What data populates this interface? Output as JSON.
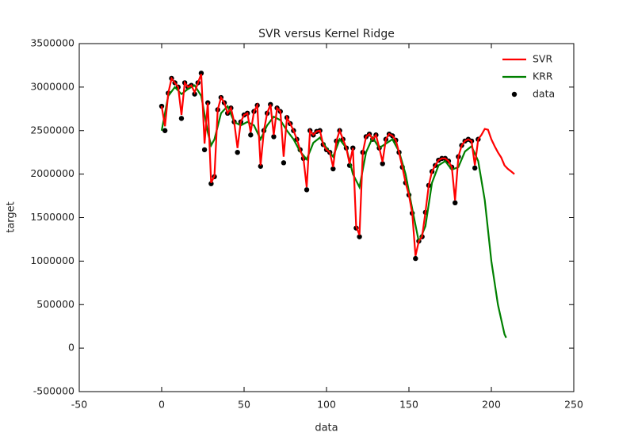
{
  "chart_data": {
    "type": "line",
    "title": "SVR versus Kernel Ridge",
    "xlabel": "data",
    "ylabel": "target",
    "xlim": [
      -50,
      250
    ],
    "xticks": [
      -50,
      0,
      50,
      100,
      150,
      200,
      250
    ],
    "ylim": [
      -500000,
      3500000
    ],
    "yticks": [
      -500000,
      0,
      500000,
      1000000,
      1500000,
      2000000,
      2500000,
      3000000,
      3500000
    ],
    "grid": false,
    "legend": "upper right",
    "series": [
      {
        "name": "SVR",
        "type": "line",
        "color": "#ff0000",
        "x": [
          0,
          2,
          4,
          6,
          8,
          10,
          12,
          14,
          16,
          18,
          20,
          22,
          24,
          26,
          28,
          30,
          32,
          34,
          36,
          38,
          40,
          42,
          44,
          46,
          48,
          50,
          52,
          54,
          56,
          58,
          60,
          62,
          64,
          66,
          68,
          70,
          72,
          74,
          76,
          78,
          80,
          82,
          84,
          86,
          88,
          90,
          92,
          94,
          96,
          98,
          100,
          102,
          104,
          106,
          108,
          110,
          112,
          114,
          116,
          118,
          120,
          122,
          124,
          126,
          128,
          130,
          132,
          134,
          136,
          138,
          140,
          142,
          144,
          146,
          148,
          150,
          152,
          154,
          156,
          158,
          160,
          162,
          164,
          166,
          168,
          170,
          172,
          174,
          176,
          178,
          180,
          182,
          184,
          186,
          188,
          190,
          192,
          194,
          196,
          198,
          200,
          202,
          204,
          206,
          208,
          210,
          212,
          214
        ],
        "values": [
          2780000,
          2550000,
          2930000,
          3100000,
          3050000,
          3000000,
          2680000,
          3050000,
          3000000,
          3020000,
          2940000,
          3050000,
          3150000,
          2350000,
          2820000,
          1900000,
          1980000,
          2740000,
          2880000,
          2820000,
          2700000,
          2760000,
          2600000,
          2300000,
          2600000,
          2680000,
          2700000,
          2480000,
          2720000,
          2790000,
          2100000,
          2500000,
          2700000,
          2800000,
          2450000,
          2760000,
          2720000,
          2200000,
          2650000,
          2580000,
          2500000,
          2400000,
          2280000,
          2180000,
          1850000,
          2500000,
          2450000,
          2490000,
          2500000,
          2340000,
          2280000,
          2250000,
          2080000,
          2380000,
          2500000,
          2400000,
          2300000,
          2120000,
          2300000,
          1400000,
          1300000,
          2250000,
          2430000,
          2460000,
          2400000,
          2450000,
          2300000,
          2140000,
          2400000,
          2460000,
          2440000,
          2390000,
          2250000,
          2080000,
          1900000,
          1760000,
          1550000,
          1060000,
          1230000,
          1280000,
          1560000,
          1870000,
          2030000,
          2100000,
          2160000,
          2180000,
          2180000,
          2150000,
          2080000,
          1700000,
          2200000,
          2330000,
          2380000,
          2400000,
          2380000,
          2100000,
          2400000,
          2450000,
          2520000,
          2510000,
          2400000,
          2320000,
          2250000,
          2190000,
          2100000,
          2060000,
          2030000,
          2000000
        ]
      },
      {
        "name": "KRR",
        "type": "line",
        "color": "#008000",
        "x": [
          0,
          4,
          8,
          12,
          16,
          20,
          24,
          28,
          30,
          32,
          36,
          40,
          44,
          48,
          52,
          56,
          60,
          64,
          68,
          72,
          76,
          80,
          84,
          88,
          92,
          96,
          100,
          104,
          108,
          112,
          116,
          120,
          124,
          128,
          132,
          136,
          140,
          144,
          148,
          152,
          156,
          160,
          164,
          168,
          172,
          176,
          180,
          184,
          188,
          192,
          196,
          200,
          204,
          208,
          209
        ],
        "values": [
          2500000,
          2900000,
          3000000,
          2920000,
          2980000,
          3020000,
          2900000,
          2480000,
          2330000,
          2400000,
          2700000,
          2780000,
          2600000,
          2560000,
          2600000,
          2560000,
          2400000,
          2560000,
          2660000,
          2620000,
          2500000,
          2400000,
          2260000,
          2170000,
          2360000,
          2420000,
          2300000,
          2200000,
          2400000,
          2300000,
          2000000,
          1850000,
          2250000,
          2420000,
          2300000,
          2350000,
          2400000,
          2260000,
          2000000,
          1600000,
          1220000,
          1400000,
          1900000,
          2100000,
          2150000,
          2050000,
          2080000,
          2260000,
          2320000,
          2150000,
          1700000,
          1000000,
          500000,
          160000,
          120000
        ]
      },
      {
        "name": "data",
        "type": "scatter",
        "color": "#000000",
        "x": [
          0,
          2,
          4,
          6,
          8,
          10,
          12,
          14,
          16,
          18,
          20,
          22,
          24,
          26,
          28,
          30,
          32,
          34,
          36,
          38,
          40,
          42,
          44,
          46,
          48,
          50,
          52,
          54,
          56,
          58,
          60,
          62,
          64,
          66,
          68,
          70,
          72,
          74,
          76,
          78,
          80,
          82,
          84,
          86,
          88,
          90,
          92,
          94,
          96,
          98,
          100,
          102,
          104,
          106,
          108,
          110,
          112,
          114,
          116,
          118,
          120,
          122,
          124,
          126,
          128,
          130,
          132,
          134,
          136,
          138,
          140,
          142,
          144,
          146,
          148,
          150,
          152,
          154,
          156,
          158,
          160,
          162,
          164,
          166,
          168,
          170,
          172,
          174,
          176,
          178,
          180,
          182,
          184,
          186,
          188,
          190,
          192
        ],
        "values": [
          2780000,
          2500000,
          2930000,
          3100000,
          3050000,
          3000000,
          2640000,
          3050000,
          3000000,
          3020000,
          2920000,
          3050000,
          3160000,
          2280000,
          2820000,
          1890000,
          1970000,
          2740000,
          2880000,
          2820000,
          2700000,
          2760000,
          2600000,
          2250000,
          2600000,
          2680000,
          2700000,
          2450000,
          2720000,
          2790000,
          2090000,
          2500000,
          2700000,
          2800000,
          2430000,
          2760000,
          2720000,
          2130000,
          2650000,
          2580000,
          2500000,
          2400000,
          2280000,
          2180000,
          1820000,
          2500000,
          2450000,
          2490000,
          2500000,
          2340000,
          2280000,
          2250000,
          2060000,
          2380000,
          2500000,
          2400000,
          2300000,
          2100000,
          2300000,
          1380000,
          1280000,
          2250000,
          2430000,
          2460000,
          2400000,
          2450000,
          2300000,
          2120000,
          2400000,
          2460000,
          2440000,
          2390000,
          2250000,
          2080000,
          1900000,
          1760000,
          1550000,
          1030000,
          1230000,
          1280000,
          1560000,
          1870000,
          2030000,
          2100000,
          2160000,
          2180000,
          2180000,
          2150000,
          2080000,
          1670000,
          2200000,
          2330000,
          2380000,
          2400000,
          2380000,
          2070000,
          2400000
        ]
      }
    ]
  }
}
